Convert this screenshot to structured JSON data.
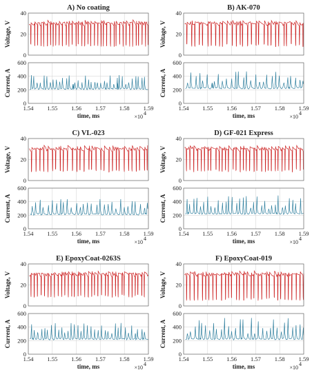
{
  "chart_data": [
    {
      "title": "A) No coating",
      "type": "line",
      "voltage": {
        "ylabel": "Voltage, V",
        "ylim": [
          0,
          40
        ],
        "yticks": [
          0,
          20,
          40
        ],
        "series_color": "#cc2222"
      },
      "current": {
        "ylabel": "Current, A",
        "ylim": [
          0,
          600
        ],
        "yticks": [
          0,
          200,
          400,
          600
        ],
        "series_color": "#2f7f9e"
      },
      "x": {
        "label": "time, ms",
        "range": [
          15400,
          15900
        ],
        "tick_labels": [
          "1.54",
          "1.55",
          "1.56",
          "1.57",
          "1.58",
          "1.59"
        ],
        "multiplier": "×10",
        "exponent": "4"
      },
      "pulse_count": 38,
      "voltage_high": 30,
      "voltage_low": 8,
      "current_base": 220,
      "current_peak_max": 420,
      "seed": 11
    },
    {
      "title": "B) AK-070",
      "type": "line",
      "voltage": {
        "ylabel": "Voltage, V",
        "ylim": [
          0,
          40
        ],
        "yticks": [
          0,
          20,
          40
        ],
        "series_color": "#cc2222"
      },
      "current": {
        "ylabel": "Current, A",
        "ylim": [
          0,
          600
        ],
        "yticks": [
          0,
          200,
          400,
          600
        ],
        "series_color": "#2f7f9e"
      },
      "x": {
        "label": "time, ms",
        "range": [
          15400,
          15900
        ],
        "tick_labels": [
          "1.54",
          "1.55",
          "1.56",
          "1.57",
          "1.58",
          "1.59"
        ],
        "multiplier": "×10",
        "exponent": "4"
      },
      "pulse_count": 30,
      "voltage_high": 30,
      "voltage_low": 8,
      "current_base": 230,
      "current_peak_max": 480,
      "seed": 23
    },
    {
      "title": "C) VL-023",
      "type": "line",
      "voltage": {
        "ylabel": "Voltage, V",
        "ylim": [
          0,
          40
        ],
        "yticks": [
          0,
          20,
          40
        ],
        "series_color": "#cc2222"
      },
      "current": {
        "ylabel": "Current, A",
        "ylim": [
          0,
          600
        ],
        "yticks": [
          0,
          200,
          400,
          600
        ],
        "series_color": "#2f7f9e"
      },
      "x": {
        "label": "time, ms",
        "range": [
          15400,
          15900
        ],
        "tick_labels": [
          "1.54",
          "1.55",
          "1.56",
          "1.57",
          "1.58",
          "1.59"
        ],
        "multiplier": "×10",
        "exponent": "4"
      },
      "pulse_count": 30,
      "voltage_high": 30,
      "voltage_low": 8,
      "current_base": 220,
      "current_peak_max": 440,
      "seed": 37
    },
    {
      "title": "D) GF-021 Express",
      "type": "line",
      "voltage": {
        "ylabel": "Voltage, V",
        "ylim": [
          0,
          40
        ],
        "yticks": [
          0,
          20,
          40
        ],
        "series_color": "#cc2222"
      },
      "current": {
        "ylabel": "Current, A",
        "ylim": [
          0,
          600
        ],
        "yticks": [
          0,
          200,
          400,
          600
        ],
        "series_color": "#2f7f9e"
      },
      "x": {
        "label": "time, ms",
        "range": [
          15400,
          15900
        ],
        "tick_labels": [
          "1.54",
          "1.55",
          "1.56",
          "1.57",
          "1.58",
          "1.59"
        ],
        "multiplier": "×10",
        "exponent": "4"
      },
      "pulse_count": 34,
      "voltage_high": 30,
      "voltage_low": 8,
      "current_base": 230,
      "current_peak_max": 500,
      "seed": 41
    },
    {
      "title": "E) EpoxyCoat-0263S",
      "type": "line",
      "voltage": {
        "ylabel": "Voltage, V",
        "ylim": [
          0,
          40
        ],
        "yticks": [
          0,
          20,
          40
        ],
        "series_color": "#cc2222"
      },
      "current": {
        "ylabel": "Current, A",
        "ylim": [
          0,
          600
        ],
        "yticks": [
          0,
          200,
          400,
          600
        ],
        "series_color": "#2f7f9e"
      },
      "x": {
        "label": "time, ms",
        "range": [
          15400,
          15900
        ],
        "tick_labels": [
          "1.54",
          "1.55",
          "1.56",
          "1.57",
          "1.58",
          "1.59"
        ],
        "multiplier": "×10",
        "exponent": "4"
      },
      "pulse_count": 36,
      "voltage_high": 30,
      "voltage_low": 8,
      "current_base": 230,
      "current_peak_max": 480,
      "seed": 53
    },
    {
      "title": "F) EpoxyCoat-019",
      "type": "line",
      "voltage": {
        "ylabel": "Voltage, V",
        "ylim": [
          0,
          40
        ],
        "yticks": [
          0,
          20,
          40
        ],
        "series_color": "#cc2222"
      },
      "current": {
        "ylabel": "Current, A",
        "ylim": [
          0,
          600
        ],
        "yticks": [
          0,
          200,
          400,
          600
        ],
        "series_color": "#2f7f9e"
      },
      "x": {
        "label": "time, ms",
        "range": [
          15400,
          15900
        ],
        "tick_labels": [
          "1.54",
          "1.55",
          "1.56",
          "1.57",
          "1.58",
          "1.59"
        ],
        "multiplier": "×10",
        "exponent": "4"
      },
      "pulse_count": 32,
      "voltage_high": 30,
      "voltage_low": 5,
      "current_base": 230,
      "current_peak_max": 540,
      "seed": 67
    }
  ]
}
